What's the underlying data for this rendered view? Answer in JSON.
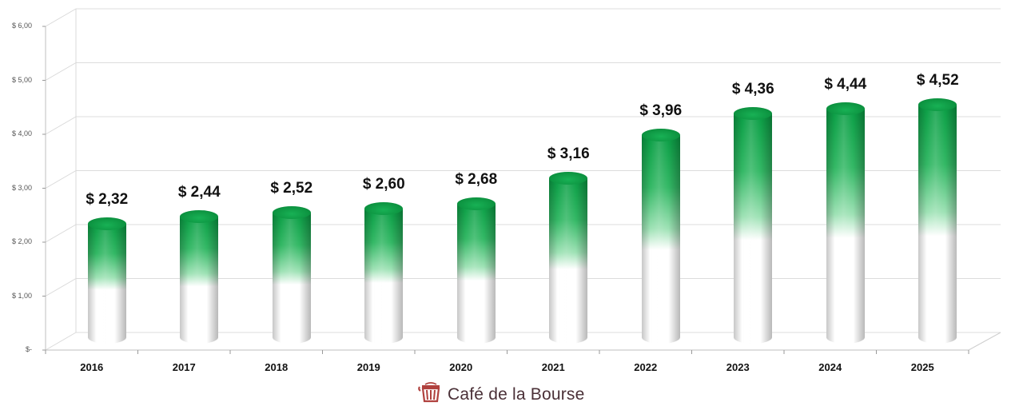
{
  "chart_data": {
    "type": "bar",
    "style": "3d-cylinder",
    "title": "",
    "xlabel": "",
    "ylabel": "",
    "categories": [
      "2016",
      "2017",
      "2018",
      "2019",
      "2020",
      "2021",
      "2022",
      "2023",
      "2024",
      "2025"
    ],
    "values": [
      2.32,
      2.44,
      2.52,
      2.6,
      2.68,
      3.16,
      3.96,
      4.36,
      4.44,
      4.52
    ],
    "data_labels": [
      "$ 2,32",
      "$ 2,44",
      "$ 2,52",
      "$ 2,60",
      "$ 2,68",
      "$ 3,16",
      "$ 3,96",
      "$ 4,36",
      "$ 4,44",
      "$ 4,52"
    ],
    "y_ticks": [
      "$-",
      "$ 1,00",
      "$ 2,00",
      "$ 3,00",
      "$ 4,00",
      "$ 5,00",
      "$ 6,00"
    ],
    "ylim": [
      0,
      6
    ],
    "grid": true,
    "legend": null,
    "bar_color_top": "#0a9e45",
    "bar_color_bottom": "#ffffff"
  },
  "footer": {
    "brand": "Café de la Bourse",
    "brand_color": "#4a3037",
    "icon_color": "#b0413e"
  }
}
